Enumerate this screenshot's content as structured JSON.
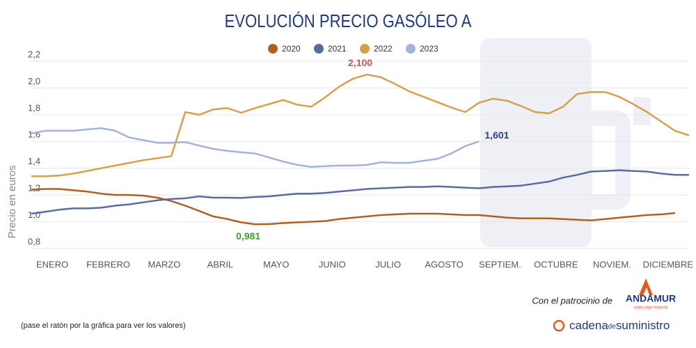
{
  "chart_data": {
    "type": "line",
    "title": "EVOLUCIÓN PRECIO GASÓLEO A",
    "y_label": "Precio en euros",
    "note": "(pase el ratón por la gráfica para ver los valores)",
    "sponsor_text": "Con el patrocinio de",
    "sponsor_name": "ANDAMUR",
    "sponsor_tagline": "cada viaje importa",
    "brand": {
      "part1": "cadena",
      "part2": "de",
      "part3": "suministro"
    },
    "categories": [
      null,
      "ENERO",
      null,
      null,
      null,
      "FEBRERO",
      null,
      null,
      null,
      "MARZO",
      null,
      null,
      null,
      "ABRIL",
      null,
      null,
      null,
      "MAYO",
      null,
      null,
      null,
      "JUNIO",
      null,
      null,
      null,
      "JULIO",
      null,
      null,
      null,
      "AGOSTO",
      null,
      null,
      null,
      "SEPTIEM.",
      null,
      null,
      null,
      "OCTUBRE",
      null,
      null,
      null,
      "NOVIEM.",
      null,
      null,
      null,
      "DICIEMBRE",
      null,
      null
    ],
    "ylim": [
      0.8,
      2.2
    ],
    "yticks": [
      {
        "value": 0.8,
        "label": "0,8"
      },
      {
        "value": 1.0,
        "label": "1,0"
      },
      {
        "value": 1.2,
        "label": "1,2"
      },
      {
        "value": 1.4,
        "label": "1,4"
      },
      {
        "value": 1.6,
        "label": "1,6"
      },
      {
        "value": 1.8,
        "label": "1,8"
      },
      {
        "value": 2.0,
        "label": "2,0"
      },
      {
        "value": 2.2,
        "label": "2,2"
      }
    ],
    "grid": true,
    "series": [
      {
        "name": "2020",
        "color": "#b0601e",
        "label_color": "#3aa02a",
        "values": [
          1.24,
          1.245,
          1.245,
          1.235,
          1.225,
          1.21,
          1.2,
          1.2,
          1.195,
          1.18,
          1.155,
          1.12,
          1.08,
          1.04,
          1.02,
          0.995,
          0.981,
          0.982,
          0.99,
          0.995,
          1.0,
          1.005,
          1.02,
          1.03,
          1.04,
          1.05,
          1.055,
          1.06,
          1.06,
          1.06,
          1.055,
          1.05,
          1.05,
          1.04,
          1.03,
          1.025,
          1.025,
          1.025,
          1.02,
          1.015,
          1.01,
          1.02,
          1.03,
          1.04,
          1.05,
          1.055,
          1.065,
          null
        ],
        "value_labels": [
          null,
          null,
          null,
          null,
          null,
          null,
          null,
          null,
          null,
          null,
          null,
          null,
          null,
          null,
          null,
          null,
          "0,981",
          null,
          null,
          null,
          null,
          null,
          null,
          null,
          null,
          null,
          null,
          null,
          null,
          null,
          null,
          null,
          null,
          null,
          null,
          null,
          null,
          null,
          null,
          null,
          null,
          null,
          null,
          null,
          null,
          null,
          null,
          null
        ]
      },
      {
        "name": "2021",
        "color": "#5b6aa0",
        "label_color": "#5b6aa0",
        "values": [
          1.06,
          1.075,
          1.09,
          1.1,
          1.1,
          1.105,
          1.12,
          1.13,
          1.145,
          1.16,
          1.17,
          1.175,
          1.19,
          1.18,
          1.18,
          1.178,
          1.185,
          1.19,
          1.2,
          1.21,
          1.21,
          1.215,
          1.225,
          1.235,
          1.245,
          1.25,
          1.255,
          1.26,
          1.26,
          1.265,
          1.26,
          1.255,
          1.25,
          1.26,
          1.265,
          1.27,
          1.285,
          1.3,
          1.33,
          1.35,
          1.375,
          1.38,
          1.385,
          1.38,
          1.375,
          1.36,
          1.35,
          1.35
        ]
      },
      {
        "name": "2022",
        "color": "#d4a04c",
        "label_color": "#d0505a",
        "values": [
          1.34,
          1.34,
          1.345,
          1.36,
          1.38,
          1.4,
          1.42,
          1.44,
          1.46,
          1.475,
          1.49,
          1.82,
          1.8,
          1.84,
          1.85,
          1.815,
          1.85,
          1.88,
          1.91,
          1.875,
          1.86,
          1.93,
          2.01,
          2.07,
          2.1,
          2.08,
          2.03,
          1.975,
          1.935,
          1.895,
          1.855,
          1.82,
          1.89,
          1.92,
          1.905,
          1.865,
          1.82,
          1.81,
          1.86,
          1.955,
          1.97,
          1.97,
          1.935,
          1.88,
          1.82,
          1.75,
          1.68,
          1.645
        ],
        "value_labels": [
          null,
          null,
          null,
          null,
          null,
          null,
          null,
          null,
          null,
          null,
          null,
          null,
          null,
          null,
          null,
          null,
          null,
          null,
          null,
          null,
          null,
          null,
          null,
          null,
          "2,100",
          null,
          null,
          null,
          null,
          null,
          null,
          null,
          null,
          null,
          null,
          null,
          null,
          null,
          null,
          null,
          null,
          null,
          null,
          null,
          null,
          null,
          null,
          null
        ]
      },
      {
        "name": "2023",
        "color": "#a3b3d8",
        "label_color": "#2a3f8a",
        "values": [
          1.66,
          1.68,
          1.68,
          1.68,
          1.69,
          1.7,
          1.68,
          1.63,
          1.61,
          1.59,
          1.59,
          1.595,
          1.57,
          1.545,
          1.53,
          1.52,
          1.51,
          1.48,
          1.45,
          1.425,
          1.41,
          1.415,
          1.42,
          1.42,
          1.425,
          1.445,
          1.44,
          1.44,
          1.455,
          1.47,
          1.51,
          1.565,
          1.601,
          null,
          null,
          null,
          null,
          null,
          null,
          null,
          null,
          null,
          null,
          null,
          null,
          null,
          null,
          null
        ],
        "value_labels": [
          null,
          null,
          null,
          null,
          null,
          null,
          null,
          null,
          null,
          null,
          null,
          null,
          null,
          null,
          null,
          null,
          null,
          null,
          null,
          null,
          null,
          null,
          null,
          null,
          null,
          null,
          null,
          null,
          null,
          null,
          null,
          null,
          "1,601",
          null,
          null,
          null,
          null,
          null,
          null,
          null,
          null,
          null,
          null,
          null,
          null,
          null,
          null,
          null
        ]
      }
    ]
  }
}
